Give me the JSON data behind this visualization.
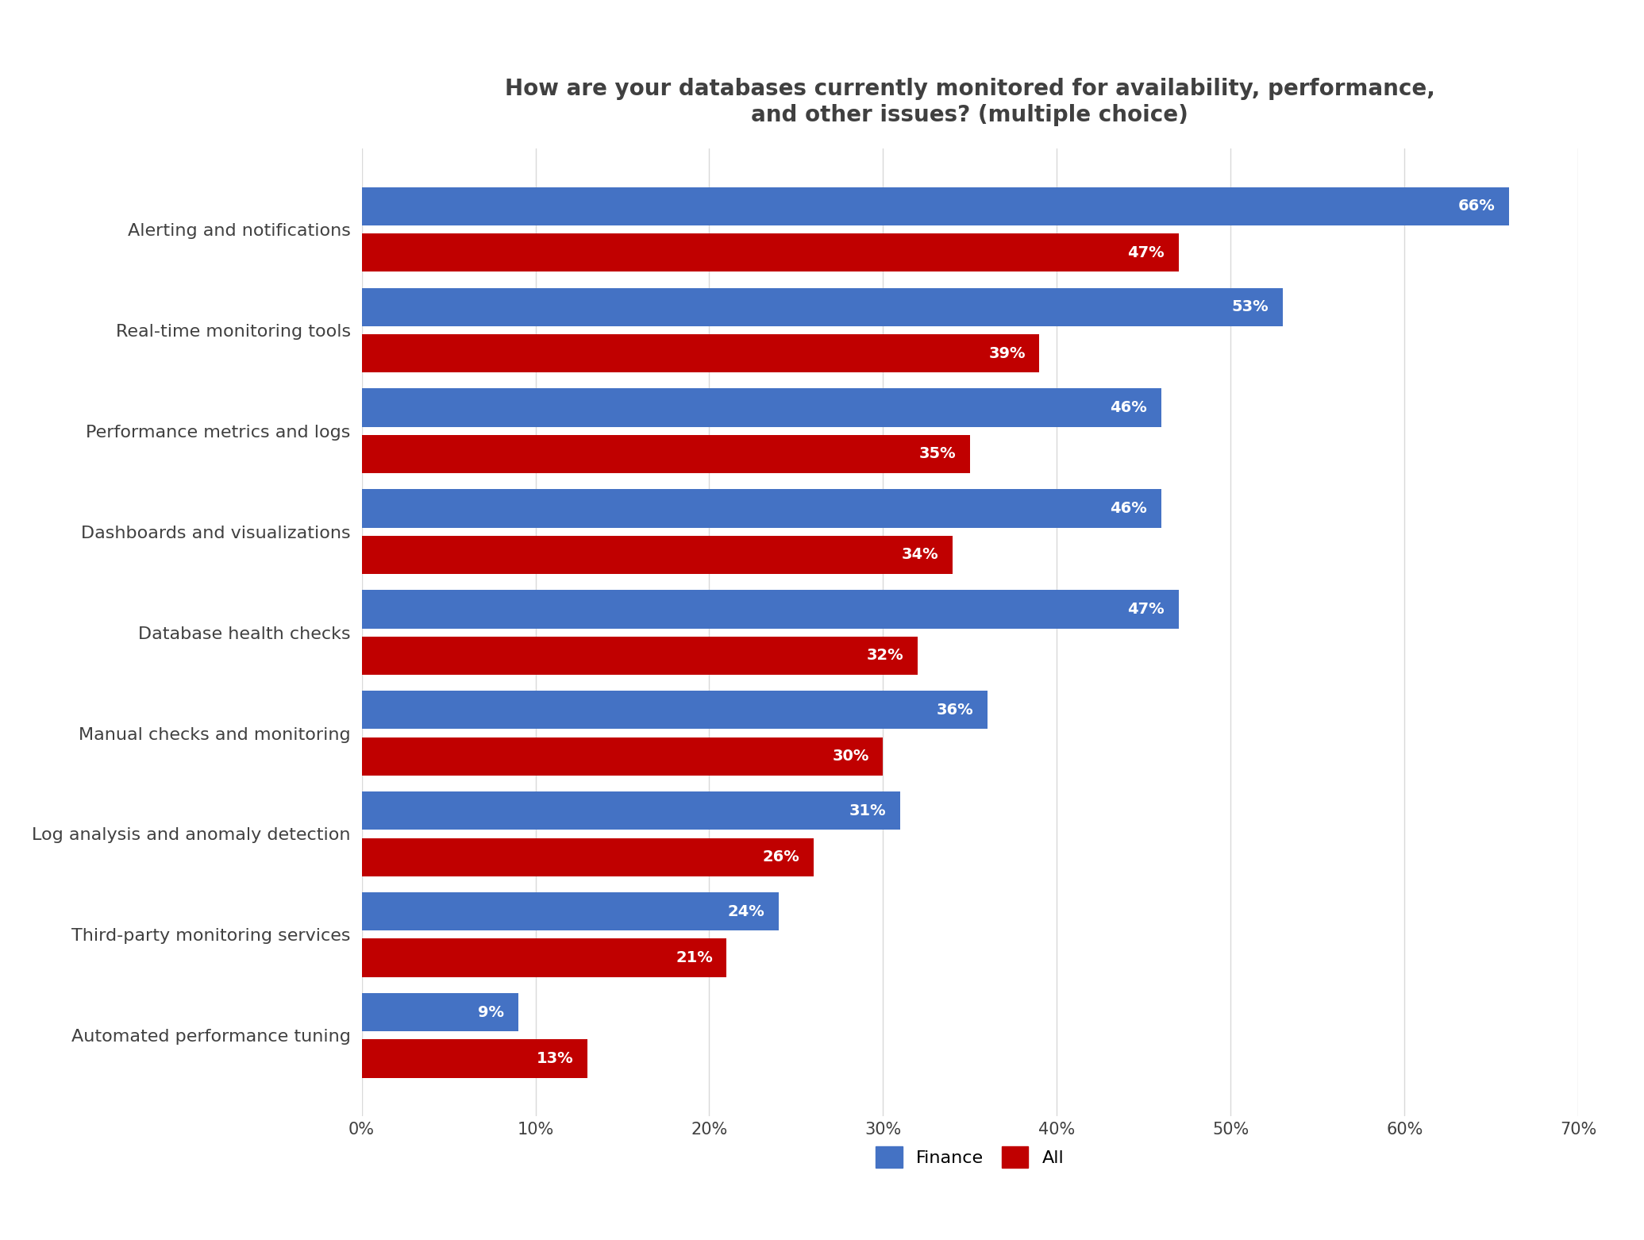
{
  "title": "How are your databases currently monitored for availability, performance,\nand other issues? (multiple choice)",
  "categories": [
    "Alerting and notifications",
    "Real-time monitoring tools",
    "Performance metrics and logs",
    "Dashboards and visualizations",
    "Database health checks",
    "Manual checks and monitoring",
    "Log analysis and anomaly detection",
    "Third-party monitoring services",
    "Automated performance tuning"
  ],
  "finance_values": [
    66,
    53,
    46,
    46,
    47,
    36,
    31,
    24,
    9
  ],
  "all_values": [
    47,
    39,
    35,
    34,
    32,
    30,
    26,
    21,
    13
  ],
  "finance_color": "#4472C4",
  "all_color": "#C00000",
  "background_color": "#FFFFFF",
  "title_fontsize": 20,
  "label_fontsize": 16,
  "tick_fontsize": 15,
  "bar_label_fontsize": 14,
  "xlim": [
    0,
    70
  ],
  "xticks": [
    0,
    10,
    20,
    30,
    40,
    50,
    60,
    70
  ],
  "xtick_labels": [
    "0%",
    "10%",
    "20%",
    "30%",
    "40%",
    "50%",
    "60%",
    "70%"
  ],
  "legend_labels": [
    "Finance",
    "All"
  ],
  "grid_color": "#D9D9D9"
}
